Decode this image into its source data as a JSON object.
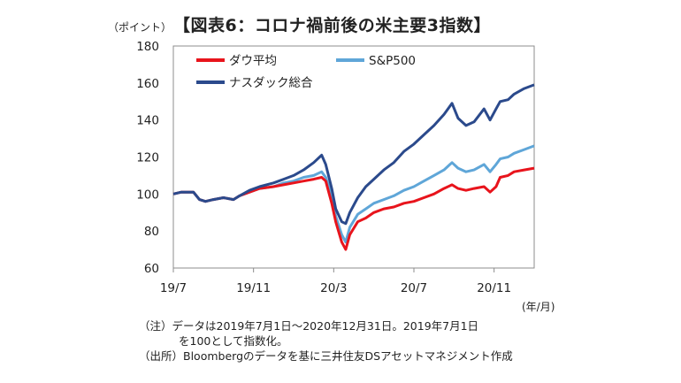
{
  "unit_label": "（ポイント）",
  "title": "【図表6：コロナ禍前後の米主要3指数】",
  "x_unit_label": "(年/月)",
  "notes": [
    "（注）データは2019年7月1日～2020年12月31日。2019年7月1日",
    "を100として指数化。",
    "（出所）Bloombergのデータを基に三井住友DSアセットマネジメント作成"
  ],
  "chart_data": {
    "type": "line",
    "ylim": [
      60,
      180
    ],
    "yticks": [
      60,
      80,
      100,
      120,
      140,
      160,
      180
    ],
    "xlim": [
      0,
      18
    ],
    "xticks": [
      {
        "pos": 0,
        "label": "19/7"
      },
      {
        "pos": 4,
        "label": "19/11"
      },
      {
        "pos": 8,
        "label": "20/3"
      },
      {
        "pos": 12,
        "label": "20/7"
      },
      {
        "pos": 16,
        "label": "20/11"
      }
    ],
    "legend_position": "top-left",
    "series": [
      {
        "name": "ダウ平均",
        "color": "#e8141c",
        "points": [
          [
            0,
            100
          ],
          [
            0.4,
            101
          ],
          [
            1,
            101
          ],
          [
            1.3,
            97
          ],
          [
            1.6,
            96
          ],
          [
            2,
            97
          ],
          [
            2.5,
            98
          ],
          [
            3,
            97
          ],
          [
            3.3,
            99
          ],
          [
            3.8,
            101
          ],
          [
            4.3,
            103
          ],
          [
            5,
            104
          ],
          [
            5.5,
            105
          ],
          [
            6,
            106
          ],
          [
            6.5,
            107
          ],
          [
            7,
            108
          ],
          [
            7.4,
            109
          ],
          [
            7.6,
            107
          ],
          [
            7.9,
            95
          ],
          [
            8.1,
            85
          ],
          [
            8.4,
            74
          ],
          [
            8.6,
            70
          ],
          [
            8.8,
            78
          ],
          [
            9.2,
            85
          ],
          [
            9.6,
            87
          ],
          [
            10,
            90
          ],
          [
            10.5,
            92
          ],
          [
            11,
            93
          ],
          [
            11.5,
            95
          ],
          [
            12,
            96
          ],
          [
            12.5,
            98
          ],
          [
            13,
            100
          ],
          [
            13.5,
            103
          ],
          [
            13.9,
            105
          ],
          [
            14.2,
            103
          ],
          [
            14.6,
            102
          ],
          [
            15,
            103
          ],
          [
            15.5,
            104
          ],
          [
            15.8,
            101
          ],
          [
            16.1,
            104
          ],
          [
            16.3,
            109
          ],
          [
            16.7,
            110
          ],
          [
            17,
            112
          ],
          [
            17.5,
            113
          ],
          [
            18,
            114
          ]
        ]
      },
      {
        "name": "S&P500",
        "color": "#5fa6d8",
        "points": [
          [
            0,
            100
          ],
          [
            0.4,
            101
          ],
          [
            1,
            101
          ],
          [
            1.3,
            97
          ],
          [
            1.6,
            96
          ],
          [
            2,
            97
          ],
          [
            2.5,
            98
          ],
          [
            3,
            97
          ],
          [
            3.3,
            99
          ],
          [
            3.8,
            101
          ],
          [
            4.3,
            103
          ],
          [
            5,
            104
          ],
          [
            5.5,
            106
          ],
          [
            6,
            107
          ],
          [
            6.5,
            109
          ],
          [
            7,
            110
          ],
          [
            7.4,
            112
          ],
          [
            7.6,
            109
          ],
          [
            7.9,
            99
          ],
          [
            8.1,
            88
          ],
          [
            8.4,
            78
          ],
          [
            8.6,
            74
          ],
          [
            8.8,
            82
          ],
          [
            9.2,
            89
          ],
          [
            9.6,
            92
          ],
          [
            10,
            95
          ],
          [
            10.5,
            97
          ],
          [
            11,
            99
          ],
          [
            11.5,
            102
          ],
          [
            12,
            104
          ],
          [
            12.5,
            107
          ],
          [
            13,
            110
          ],
          [
            13.5,
            113
          ],
          [
            13.9,
            117
          ],
          [
            14.2,
            114
          ],
          [
            14.6,
            112
          ],
          [
            15,
            113
          ],
          [
            15.5,
            116
          ],
          [
            15.8,
            112
          ],
          [
            16.1,
            116
          ],
          [
            16.3,
            119
          ],
          [
            16.7,
            120
          ],
          [
            17,
            122
          ],
          [
            17.5,
            124
          ],
          [
            18,
            126
          ]
        ]
      },
      {
        "name": "ナスダック総合",
        "color": "#2b4a8c",
        "points": [
          [
            0,
            100
          ],
          [
            0.4,
            101
          ],
          [
            1,
            101
          ],
          [
            1.3,
            97
          ],
          [
            1.6,
            96
          ],
          [
            2,
            97
          ],
          [
            2.5,
            98
          ],
          [
            3,
            97
          ],
          [
            3.3,
            99
          ],
          [
            3.8,
            102
          ],
          [
            4.3,
            104
          ],
          [
            5,
            106
          ],
          [
            5.5,
            108
          ],
          [
            6,
            110
          ],
          [
            6.5,
            113
          ],
          [
            7,
            117
          ],
          [
            7.4,
            121
          ],
          [
            7.6,
            116
          ],
          [
            7.9,
            103
          ],
          [
            8.1,
            92
          ],
          [
            8.4,
            85
          ],
          [
            8.6,
            84
          ],
          [
            8.8,
            90
          ],
          [
            9.2,
            98
          ],
          [
            9.6,
            104
          ],
          [
            10,
            108
          ],
          [
            10.5,
            113
          ],
          [
            11,
            117
          ],
          [
            11.5,
            123
          ],
          [
            12,
            127
          ],
          [
            12.5,
            132
          ],
          [
            13,
            137
          ],
          [
            13.5,
            143
          ],
          [
            13.9,
            149
          ],
          [
            14.2,
            141
          ],
          [
            14.6,
            137
          ],
          [
            15,
            139
          ],
          [
            15.5,
            146
          ],
          [
            15.8,
            140
          ],
          [
            16.1,
            146
          ],
          [
            16.3,
            150
          ],
          [
            16.7,
            151
          ],
          [
            17,
            154
          ],
          [
            17.5,
            157
          ],
          [
            18,
            159
          ]
        ]
      }
    ]
  }
}
